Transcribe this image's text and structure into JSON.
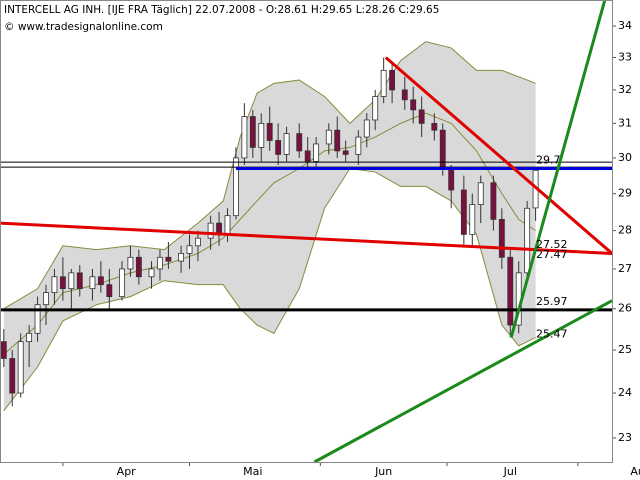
{
  "chart_data": {
    "type": "candlestick",
    "title": "INTERCELL AG INH. [IJE FRA  Täglich] 22.07.2008 - O:28.61 H:29.65 L:28.26 C:29.65",
    "watermark": "© www.tradesignalonline.com",
    "log_scale": true,
    "xlim": [
      77.1,
      222.1
    ],
    "ylim": [
      22.48,
      34.85
    ],
    "yticks": [
      23,
      24,
      25,
      26,
      27,
      28,
      29,
      30,
      31,
      32,
      33,
      34
    ],
    "xticks": [
      {
        "value": 92,
        "label": "Apr"
      },
      {
        "value": 122,
        "label": "Mai"
      },
      {
        "value": 153,
        "label": "Jun"
      },
      {
        "value": 183,
        "label": "Jul"
      },
      {
        "value": 214,
        "label": "Aug"
      }
    ],
    "up_color": "#ffffff",
    "down_color": "#7a1040",
    "x": [
      78,
      80,
      82,
      84,
      86,
      88,
      90,
      92,
      94,
      96,
      99,
      101,
      103,
      106,
      108,
      110,
      113,
      115,
      117,
      120,
      122,
      124,
      127,
      129,
      131,
      133,
      135,
      137,
      139,
      141,
      143,
      145,
      148,
      150,
      152,
      155,
      157,
      159,
      162,
      164,
      166,
      168,
      170,
      173,
      175,
      177,
      180,
      182,
      184,
      187,
      189,
      191,
      194,
      196,
      198,
      200,
      202,
      204
    ],
    "open": [
      25.2,
      24.8,
      24.0,
      25.2,
      25.4,
      26.1,
      26.4,
      26.8,
      26.5,
      26.9,
      26.5,
      26.8,
      26.6,
      26.3,
      27.0,
      27.3,
      26.8,
      27.0,
      27.3,
      27.2,
      27.4,
      27.6,
      27.8,
      28.2,
      27.9,
      28.4,
      30.0,
      31.2,
      30.3,
      31.0,
      30.5,
      30.1,
      30.7,
      30.2,
      29.9,
      30.4,
      30.8,
      30.2,
      30.1,
      30.6,
      31.1,
      31.8,
      32.6,
      32.0,
      31.7,
      31.4,
      31.0,
      30.8,
      29.7,
      29.1,
      27.9,
      28.7,
      29.3,
      28.3,
      27.3,
      25.6,
      26.9,
      28.61
    ],
    "high": [
      25.5,
      25.0,
      25.4,
      25.6,
      26.3,
      26.6,
      27.0,
      27.3,
      27.0,
      27.1,
      27.0,
      27.2,
      27.0,
      27.2,
      27.6,
      27.5,
      27.2,
      27.5,
      27.7,
      27.6,
      27.9,
      28.0,
      28.4,
      28.5,
      28.6,
      30.3,
      31.6,
      31.4,
      31.3,
      31.5,
      31.0,
      30.9,
      31.0,
      30.6,
      30.6,
      31.0,
      31.2,
      30.5,
      30.8,
      31.3,
      32.0,
      33.0,
      32.8,
      32.4,
      32.1,
      31.8,
      31.3,
      31.0,
      29.8,
      29.5,
      29.0,
      29.5,
      29.5,
      28.6,
      27.5,
      27.2,
      28.8,
      29.65
    ],
    "low": [
      24.6,
      23.7,
      23.9,
      24.6,
      25.2,
      25.6,
      26.1,
      26.2,
      26.0,
      26.3,
      26.2,
      26.4,
      26.0,
      26.2,
      26.8,
      26.6,
      26.5,
      26.7,
      27.0,
      26.9,
      27.0,
      27.2,
      27.5,
      27.6,
      27.7,
      28.3,
      29.8,
      30.0,
      29.9,
      30.2,
      29.8,
      29.9,
      30.0,
      29.7,
      29.7,
      30.1,
      30.0,
      29.9,
      29.8,
      30.3,
      30.8,
      31.6,
      31.6,
      31.4,
      31.0,
      30.6,
      30.5,
      29.5,
      28.6,
      27.6,
      27.6,
      28.2,
      28.0,
      27.0,
      25.3,
      25.4,
      26.7,
      28.26
    ],
    "close": [
      24.8,
      24.0,
      25.2,
      25.4,
      26.1,
      26.4,
      26.8,
      26.5,
      26.9,
      26.5,
      26.8,
      26.6,
      26.3,
      27.0,
      27.3,
      26.8,
      27.0,
      27.3,
      27.2,
      27.4,
      27.6,
      27.8,
      28.2,
      27.9,
      28.4,
      30.0,
      31.2,
      30.3,
      31.0,
      30.5,
      30.1,
      30.7,
      30.2,
      29.9,
      30.4,
      30.8,
      30.2,
      30.1,
      30.6,
      31.1,
      31.8,
      32.6,
      32.0,
      31.7,
      31.4,
      31.0,
      30.8,
      29.7,
      29.1,
      27.9,
      28.7,
      29.3,
      28.3,
      27.3,
      25.6,
      26.9,
      28.6,
      29.65
    ],
    "bands": {
      "color": "#8a8a3a",
      "fill": "#d9d9d9",
      "x": [
        78,
        86,
        92,
        100,
        108,
        116,
        124,
        130,
        134,
        138,
        142,
        148,
        154,
        160,
        166,
        172,
        178,
        184,
        190,
        196,
        200,
        204
      ],
      "upper": [
        26.0,
        26.5,
        27.6,
        27.5,
        27.6,
        27.5,
        28.2,
        28.8,
        30.6,
        31.9,
        32.2,
        32.3,
        31.8,
        31.0,
        31.7,
        32.9,
        33.5,
        33.3,
        32.6,
        32.6,
        32.4,
        32.2
      ],
      "middle": [
        24.9,
        25.6,
        26.4,
        26.6,
        26.9,
        27.1,
        27.4,
        27.8,
        28.3,
        28.8,
        29.3,
        29.7,
        30.2,
        30.3,
        30.6,
        31.0,
        31.3,
        31.0,
        30.2,
        29.0,
        28.3,
        28.0
      ],
      "lower": [
        23.6,
        24.6,
        25.7,
        26.1,
        26.3,
        26.7,
        26.6,
        26.6,
        26.0,
        25.6,
        25.4,
        26.5,
        28.6,
        29.7,
        29.6,
        29.2,
        29.2,
        28.8,
        27.9,
        25.6,
        25.1,
        25.3
      ]
    },
    "trendlines": [
      {
        "color": "#e00000",
        "x": [
          77.1,
          222.1
        ],
        "y": [
          28.2,
          27.4
        ]
      },
      {
        "color": "#e00000",
        "x": [
          168.5,
          222.1
        ],
        "y": [
          33.0,
          27.4
        ]
      },
      {
        "color": "#1a8a1a",
        "x": [
          198.2,
          220.4
        ],
        "y": [
          25.3,
          34.85
        ]
      },
      {
        "color": "#1a8a1a",
        "x": [
          151.6,
          222.1
        ],
        "y": [
          22.48,
          26.2
        ]
      }
    ],
    "levels": [
      {
        "value": 29.7,
        "color": "#0000dd",
        "from": 133,
        "label_color": "#000080"
      },
      {
        "value": 25.97,
        "color": "#000000",
        "from": 77.1,
        "label_color": "#000000"
      }
    ],
    "thin_levels": [
      29.88,
      29.74
    ],
    "price_labels": [
      {
        "value": 27.52,
        "color": "#e00000"
      },
      {
        "value": 27.47,
        "color": "#1a8a1a"
      },
      {
        "value": 25.47,
        "color": "#1a8a1a"
      }
    ]
  }
}
